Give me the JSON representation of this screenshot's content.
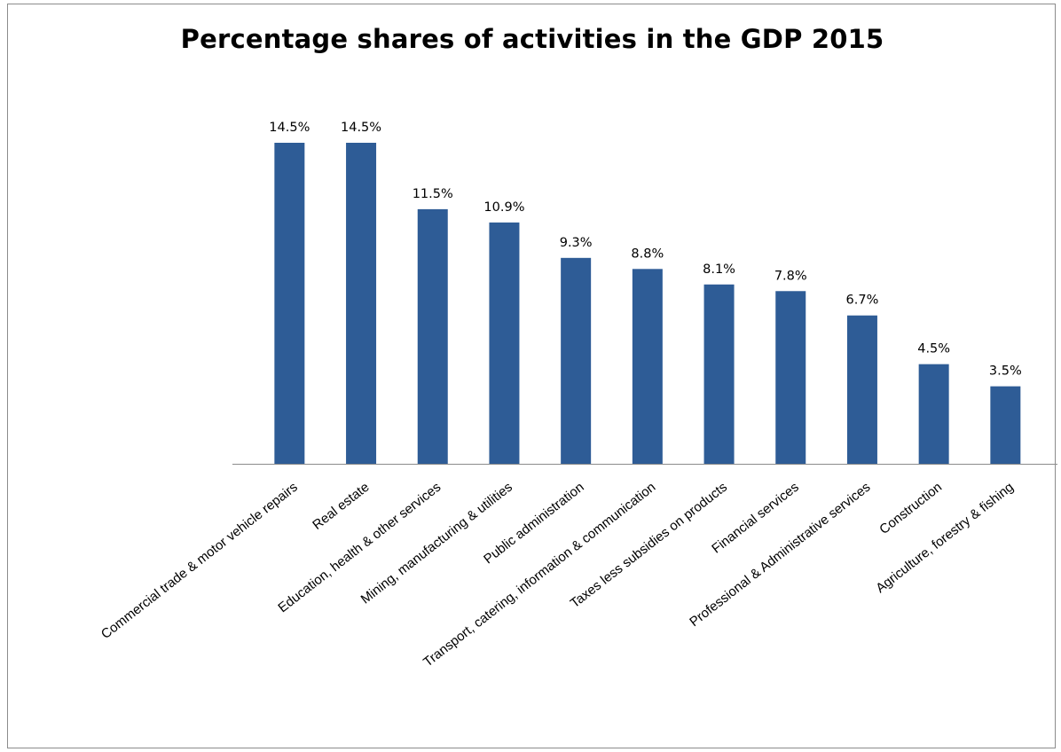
{
  "chart_data": {
    "type": "bar",
    "title": "Percentage shares of activities in the GDP 2015",
    "xlabel": "",
    "ylabel": "",
    "categories": [
      "Commercial trade & motor vehicle repairs",
      "Real estate",
      "Education, health & other services",
      "Mining, manufacturing & utilities",
      "Public administration",
      "Transport, catering, information & communication",
      "Taxes  less subsidies on products",
      "Financial services",
      "Professional & Administrative  services",
      "Construction",
      "Agriculture, forestry & fishing"
    ],
    "values": [
      14.5,
      14.5,
      11.5,
      10.9,
      9.3,
      8.8,
      8.1,
      7.8,
      6.7,
      4.5,
      3.5
    ],
    "data_labels": [
      "14.5%",
      "14.5%",
      "11.5%",
      "10.9%",
      "9.3%",
      "8.8%",
      "8.1%",
      "7.8%",
      "6.7%",
      "4.5%",
      "3.5%"
    ],
    "ylim": [
      0,
      14.5
    ],
    "grid": false,
    "legend": "none",
    "bar_color": "#2E5C96"
  }
}
